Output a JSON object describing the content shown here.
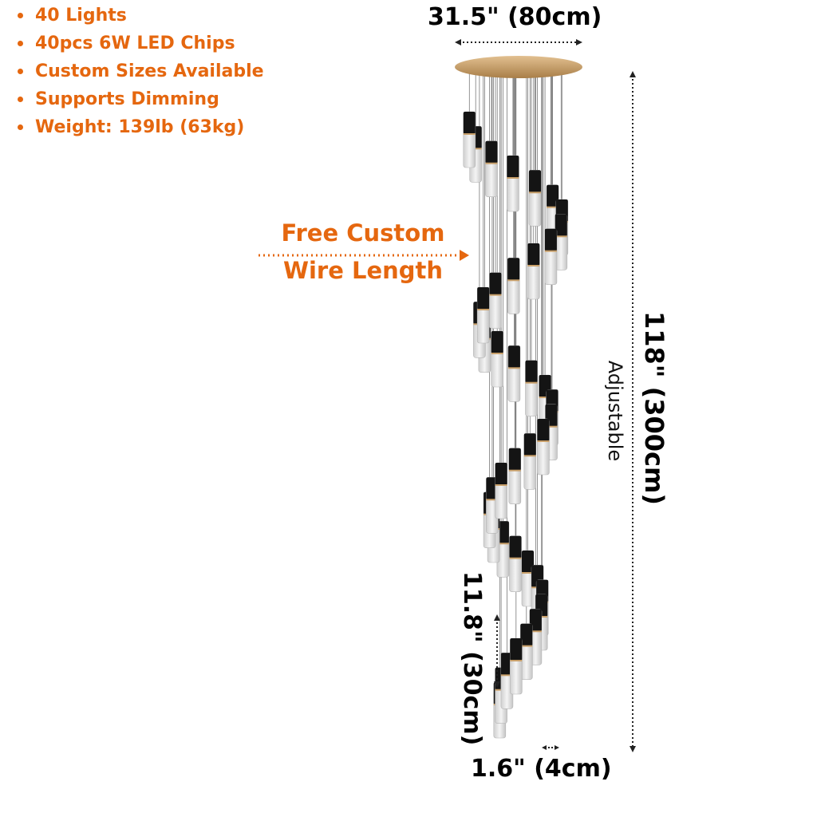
{
  "features": [
    "40 Lights",
    "40pcs 6W LED Chips",
    "Custom Sizes Available",
    "Supports Dimming",
    "Weight: 139lb (63kg)"
  ],
  "custom_wire": {
    "line1": "Free Custom",
    "line2": "Wire Length"
  },
  "dimensions": {
    "width": "31.5\" (80cm)",
    "height": "118\" (300cm)",
    "tube_length": "11.8\" (30cm)",
    "tube_diameter": "1.6\" (4cm)",
    "adjustable": "Adjustable"
  },
  "colors": {
    "accent": "#e5670f",
    "text": "#000000",
    "canopy": "#c9a06a",
    "tube_cap": "#141414",
    "crystal": "#dedede"
  },
  "icons": {
    "bullet": "dot-bullet-icon",
    "arrow": "dotted-right-arrow-icon"
  }
}
